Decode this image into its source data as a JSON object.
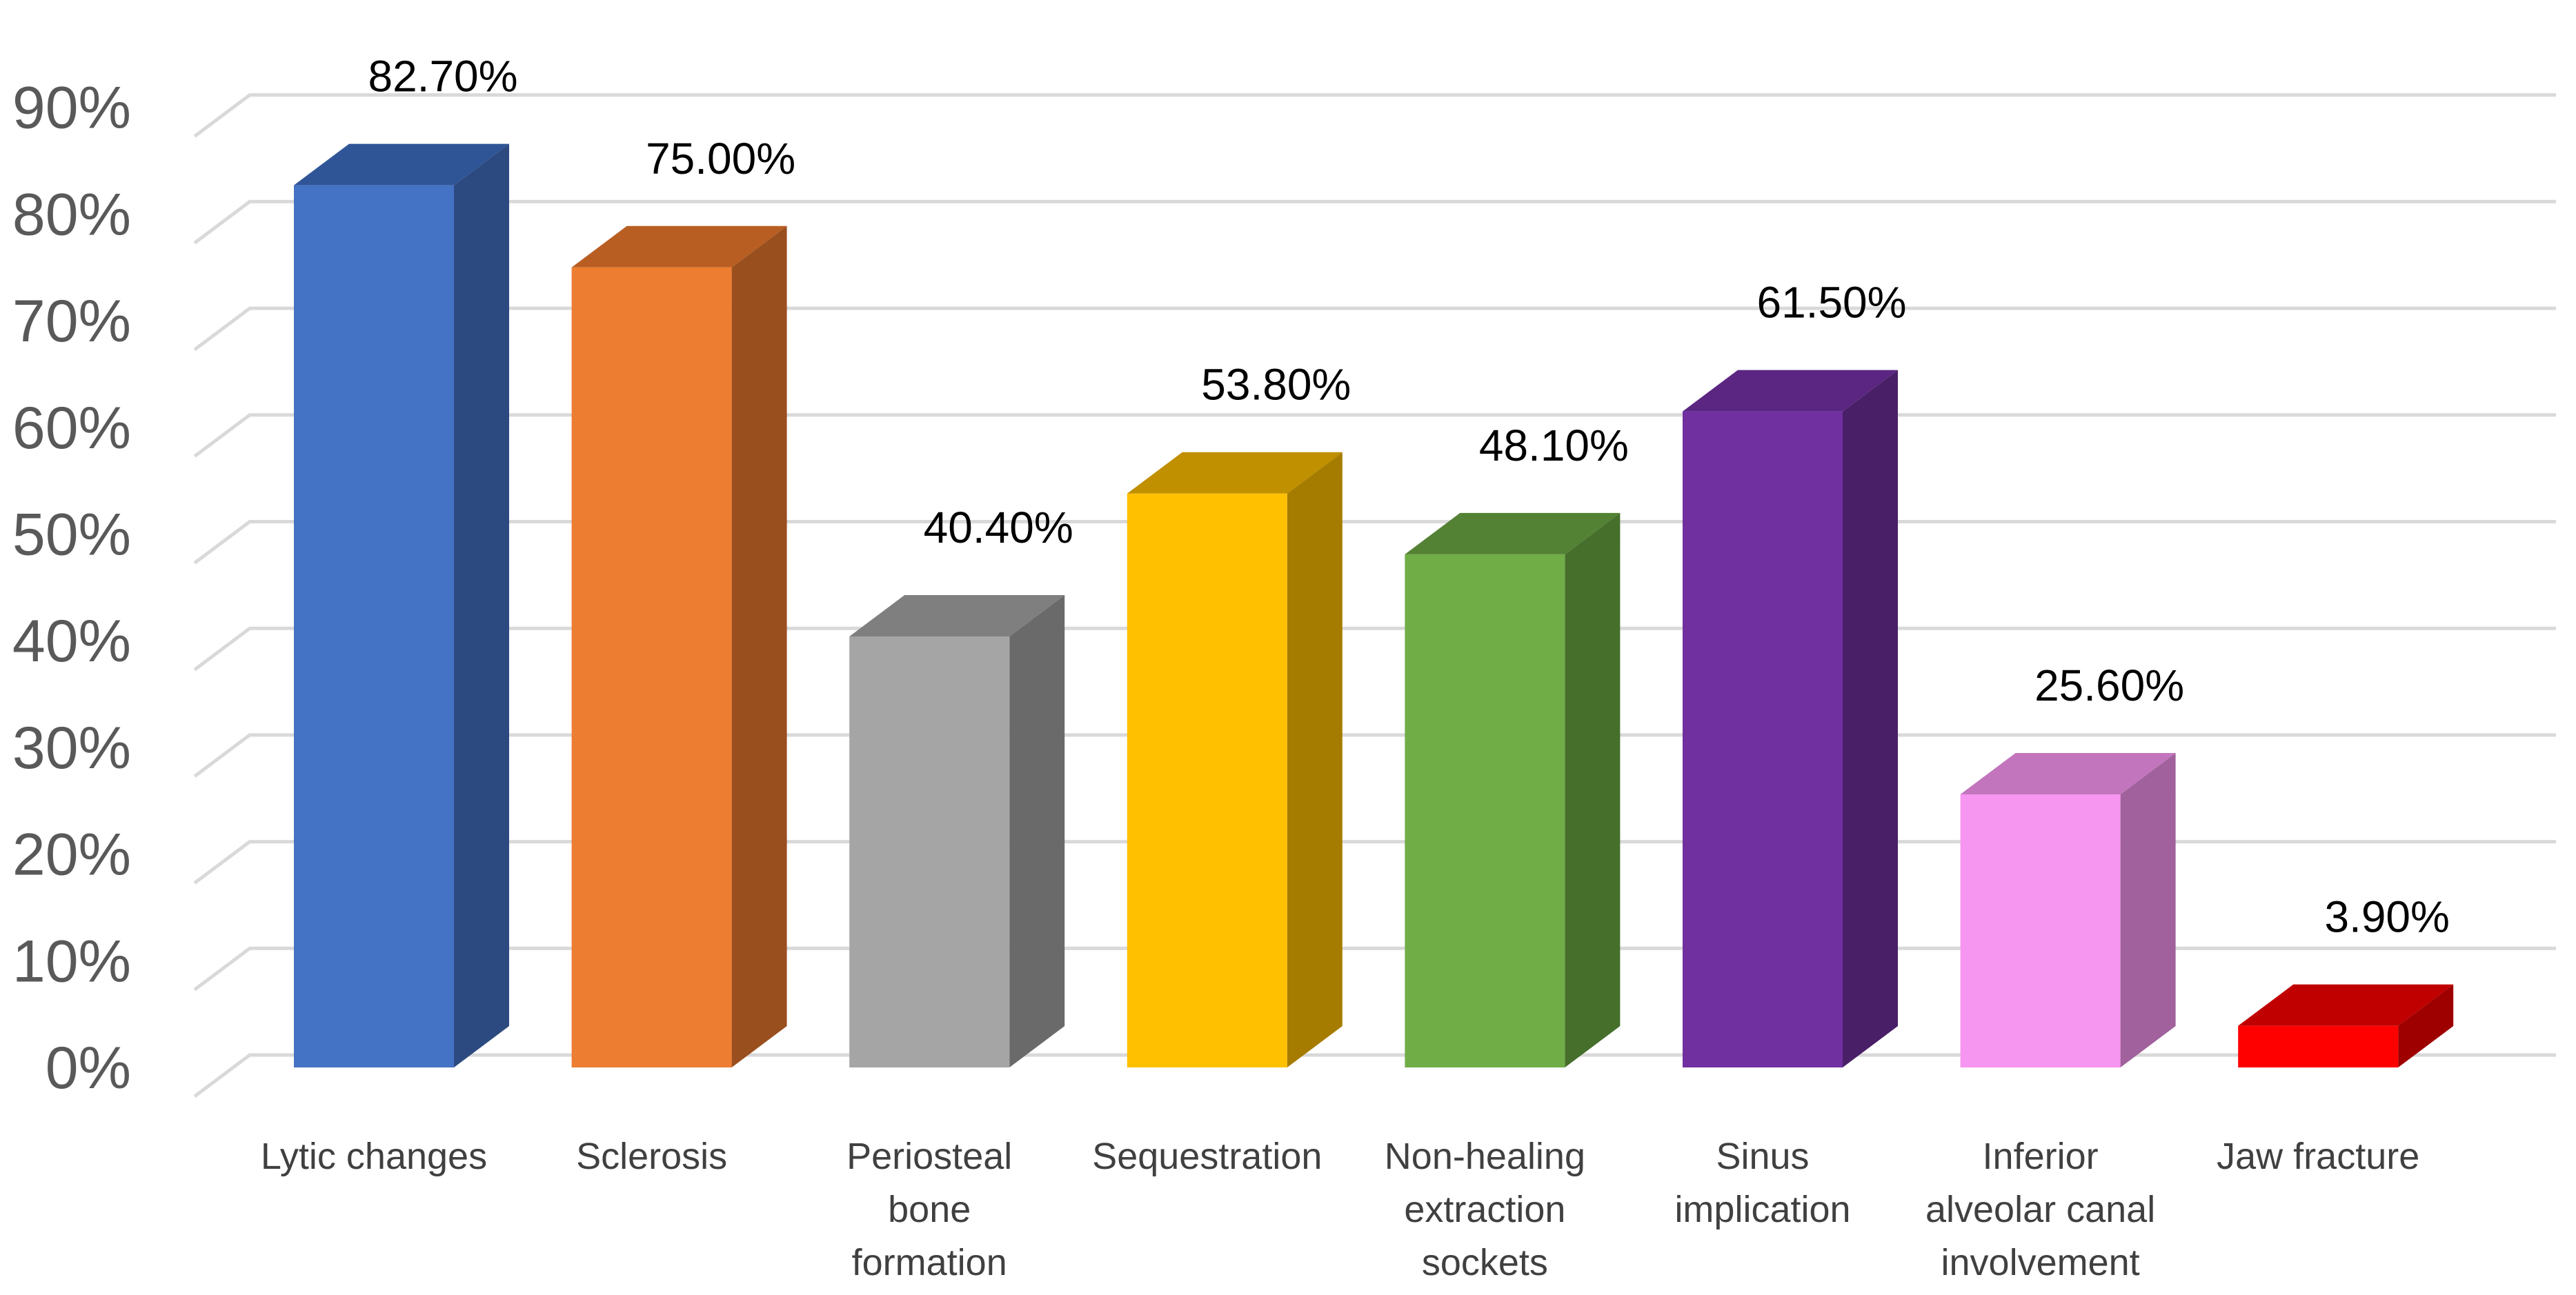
{
  "chart_data": {
    "type": "bar",
    "title": "",
    "xlabel": "",
    "ylabel": "",
    "ylim": [
      0,
      90
    ],
    "y_ticks": [
      "0%",
      "10%",
      "20%",
      "30%",
      "40%",
      "50%",
      "60%",
      "70%",
      "80%",
      "90%"
    ],
    "grid": true,
    "legend": "none",
    "categories": [
      {
        "lines": [
          "Lytic changes"
        ]
      },
      {
        "lines": [
          "Sclerosis"
        ]
      },
      {
        "lines": [
          "Periosteal",
          "bone",
          "formation"
        ]
      },
      {
        "lines": [
          "Sequestration"
        ]
      },
      {
        "lines": [
          "Non-healing",
          "extraction",
          "sockets"
        ]
      },
      {
        "lines": [
          "Sinus",
          "implication"
        ]
      },
      {
        "lines": [
          "Inferior",
          "alveolar canal",
          "involvement"
        ]
      },
      {
        "lines": [
          "Jaw fracture"
        ]
      }
    ],
    "values": [
      82.7,
      75.0,
      40.4,
      53.8,
      48.1,
      61.5,
      25.6,
      3.9
    ],
    "data_labels": [
      "82.70%",
      "75.00%",
      "40.40%",
      "53.80%",
      "48.10%",
      "61.50%",
      "25.60%",
      "3.90%"
    ],
    "colors": [
      {
        "front": "#4472c4",
        "side": "#2c4a80",
        "top": "#2f5597"
      },
      {
        "front": "#ed7d31",
        "side": "#9a4f1e",
        "top": "#b95e22"
      },
      {
        "front": "#a5a5a5",
        "side": "#6a6a6a",
        "top": "#7f7f7f"
      },
      {
        "front": "#ffc000",
        "side": "#a67c00",
        "top": "#c09000"
      },
      {
        "front": "#70ad47",
        "side": "#466f2c",
        "top": "#548235"
      },
      {
        "front": "#7030a0",
        "side": "#491f68",
        "top": "#5a2682"
      },
      {
        "front": "#f796f0",
        "side": "#a0619c",
        "top": "#c275bd"
      },
      {
        "front": "#ff0000",
        "side": "#9e0000",
        "top": "#c00000"
      }
    ]
  }
}
